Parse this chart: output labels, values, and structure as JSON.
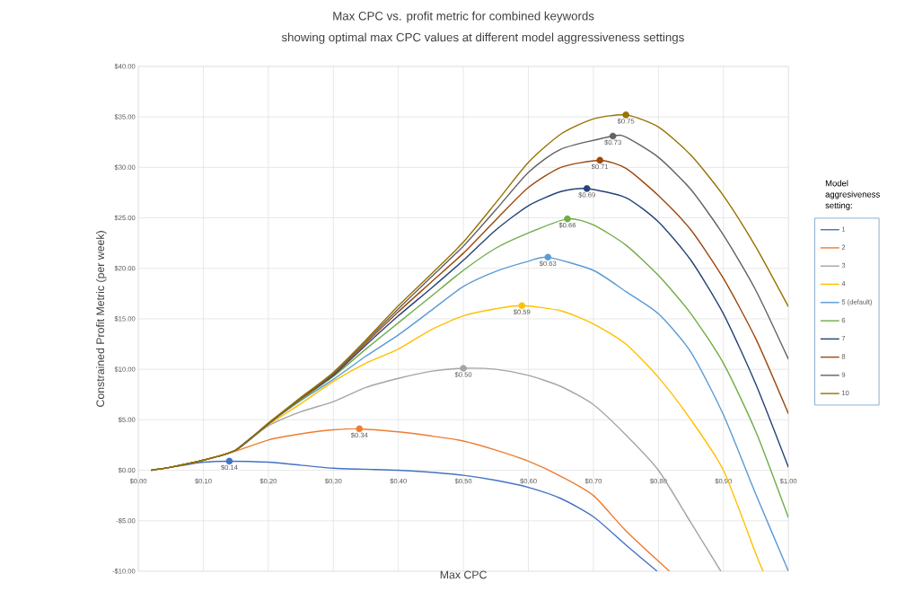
{
  "chart_data": {
    "type": "line",
    "title": "Max CPC vs. profit metric for combined keywords",
    "subtitle": "showing optimal max CPC values at different model aggressiveness settings",
    "xlabel": "Max CPC",
    "ylabel": "Constrained Profit Metric (per week)",
    "legend_title": "Model aggresiveness setting:",
    "legend": "right",
    "grid": true,
    "xlim": [
      0,
      1
    ],
    "ylim": [
      -10,
      40
    ],
    "xticks": [
      {
        "value": 0,
        "label": "$0.00"
      },
      {
        "value": 0.1,
        "label": "$0.10"
      },
      {
        "value": 0.2,
        "label": "$0.20"
      },
      {
        "value": 0.3,
        "label": "$0.30"
      },
      {
        "value": 0.4,
        "label": "$0.40"
      },
      {
        "value": 0.5,
        "label": "$0.50"
      },
      {
        "value": 0.6,
        "label": "$0.60"
      },
      {
        "value": 0.7,
        "label": "$0.70"
      },
      {
        "value": 0.8,
        "label": "$0.80"
      },
      {
        "value": 0.9,
        "label": "$0.90"
      },
      {
        "value": 1,
        "label": "$1.00"
      }
    ],
    "yticks": [
      {
        "value": -10,
        "label": "-$10.00"
      },
      {
        "value": -5,
        "label": "-$5.00"
      },
      {
        "value": 0,
        "label": "$0.00"
      },
      {
        "value": 5,
        "label": "$5.00"
      },
      {
        "value": 10,
        "label": "$10.00"
      },
      {
        "value": 15,
        "label": "$15.00"
      },
      {
        "value": 20,
        "label": "$20.00"
      },
      {
        "value": 25,
        "label": "$25.00"
      },
      {
        "value": 30,
        "label": "$30.00"
      },
      {
        "value": 35,
        "label": "$35.00"
      },
      {
        "value": 40,
        "label": "$40.00"
      }
    ],
    "series": [
      {
        "name": "1",
        "color": "#4472c4",
        "x": [
          0.02,
          0.05,
          0.1,
          0.14,
          0.2,
          0.25,
          0.3,
          0.35,
          0.4,
          0.45,
          0.5,
          0.55,
          0.6,
          0.65,
          0.7,
          0.75,
          0.798
        ],
        "values": [
          0,
          0.3,
          0.8,
          0.9,
          0.8,
          0.5,
          0.2,
          0.1,
          0,
          -0.2,
          -0.5,
          -1.0,
          -1.7,
          -2.8,
          -4.6,
          -7.4,
          -10
        ]
      },
      {
        "name": "2",
        "color": "#ed7d31",
        "x": [
          0.1,
          0.15,
          0.2,
          0.25,
          0.3,
          0.34,
          0.4,
          0.45,
          0.5,
          0.55,
          0.6,
          0.65,
          0.7,
          0.75,
          0.817
        ],
        "values": [
          1.0,
          1.9,
          3.0,
          3.6,
          4.0,
          4.1,
          3.8,
          3.4,
          2.9,
          2.0,
          0.9,
          -0.6,
          -2.5,
          -6.0,
          -10
        ]
      },
      {
        "name": "3",
        "color": "#a5a5a5",
        "x": [
          0.15,
          0.2,
          0.25,
          0.3,
          0.35,
          0.4,
          0.45,
          0.5,
          0.55,
          0.6,
          0.65,
          0.7,
          0.75,
          0.8,
          0.85,
          0.896
        ],
        "values": [
          2.0,
          4.4,
          5.8,
          6.8,
          8.2,
          9.1,
          9.8,
          10.1,
          10.0,
          9.4,
          8.3,
          6.5,
          3.5,
          0,
          -5.2,
          -10
        ]
      },
      {
        "name": "4",
        "color": "#ffc000",
        "x": [
          0.02,
          0.05,
          0.1,
          0.15,
          0.2,
          0.25,
          0.3,
          0.35,
          0.4,
          0.45,
          0.5,
          0.55,
          0.59,
          0.65,
          0.7,
          0.75,
          0.8,
          0.85,
          0.9,
          0.95,
          0.961
        ],
        "values": [
          0,
          0.3,
          1.0,
          2.0,
          4.5,
          6.6,
          8.8,
          10.6,
          12.0,
          13.9,
          15.3,
          16.0,
          16.3,
          15.8,
          14.5,
          12.5,
          9.2,
          5.0,
          0,
          -8.3,
          -10
        ]
      },
      {
        "name": "5 (default)",
        "color": "#5b9bd5",
        "x": [
          0.02,
          0.05,
          0.1,
          0.15,
          0.2,
          0.25,
          0.3,
          0.35,
          0.4,
          0.45,
          0.5,
          0.55,
          0.6,
          0.63,
          0.7,
          0.75,
          0.8,
          0.85,
          0.9,
          0.95,
          1.0
        ],
        "values": [
          0,
          0.3,
          1.0,
          2.0,
          4.6,
          6.9,
          9.0,
          11.3,
          13.4,
          15.8,
          18.2,
          19.7,
          20.7,
          21.1,
          19.8,
          17.7,
          15.5,
          11.7,
          5.5,
          -2.4,
          -10
        ]
      },
      {
        "name": "6",
        "color": "#70ad47",
        "x": [
          0.02,
          0.05,
          0.1,
          0.15,
          0.2,
          0.25,
          0.3,
          0.35,
          0.4,
          0.45,
          0.5,
          0.55,
          0.6,
          0.66,
          0.7,
          0.75,
          0.8,
          0.85,
          0.9,
          0.95,
          1.0
        ],
        "values": [
          0,
          0.3,
          1.0,
          2.0,
          4.6,
          7.0,
          9.3,
          12.0,
          14.6,
          17.2,
          19.8,
          22.0,
          23.5,
          24.9,
          24.3,
          22.3,
          19.3,
          15.5,
          10.6,
          3.8,
          -4.7
        ]
      },
      {
        "name": "7",
        "color": "#264478",
        "x": [
          0.15,
          0.2,
          0.25,
          0.3,
          0.35,
          0.4,
          0.45,
          0.5,
          0.55,
          0.6,
          0.65,
          0.69,
          0.75,
          0.8,
          0.85,
          0.9,
          0.95,
          1.0
        ],
        "values": [
          2.0,
          4.6,
          7.1,
          9.4,
          12.4,
          15.3,
          18.0,
          20.8,
          23.8,
          26.2,
          27.6,
          27.9,
          27.0,
          24.6,
          20.8,
          15.5,
          8.5,
          0.3
        ]
      },
      {
        "name": "8",
        "color": "#9e480e",
        "x": [
          0.02,
          0.05,
          0.1,
          0.15,
          0.2,
          0.25,
          0.3,
          0.35,
          0.4,
          0.45,
          0.5,
          0.55,
          0.6,
          0.65,
          0.71,
          0.75,
          0.8,
          0.85,
          0.9,
          0.95,
          1.0
        ],
        "values": [
          0,
          0.3,
          1.0,
          2.0,
          4.6,
          7.1,
          9.5,
          12.6,
          15.7,
          18.6,
          21.5,
          24.8,
          28.0,
          30.0,
          30.7,
          29.9,
          27.2,
          23.8,
          19.0,
          13.0,
          5.6
        ]
      },
      {
        "name": "9",
        "color": "#636363",
        "x": [
          0.02,
          0.05,
          0.1,
          0.15,
          0.2,
          0.25,
          0.3,
          0.35,
          0.4,
          0.45,
          0.5,
          0.55,
          0.6,
          0.65,
          0.73,
          0.75,
          0.8,
          0.85,
          0.9,
          0.95,
          1.0
        ],
        "values": [
          0,
          0.3,
          1.0,
          2.0,
          4.6,
          7.2,
          9.6,
          12.8,
          16.0,
          19.1,
          22.2,
          25.8,
          29.5,
          31.8,
          33.1,
          33.0,
          31.0,
          27.8,
          23.3,
          17.8,
          11.0
        ]
      },
      {
        "name": "10",
        "color": "#997300",
        "x": [
          0.02,
          0.05,
          0.1,
          0.15,
          0.2,
          0.25,
          0.3,
          0.35,
          0.4,
          0.45,
          0.5,
          0.55,
          0.6,
          0.65,
          0.7,
          0.75,
          0.8,
          0.85,
          0.9,
          0.95,
          1.0
        ],
        "values": [
          0,
          0.3,
          1.0,
          2.0,
          4.7,
          7.2,
          9.7,
          12.9,
          16.3,
          19.4,
          22.6,
          26.5,
          30.5,
          33.3,
          34.8,
          35.2,
          34.0,
          31.2,
          27.2,
          22.1,
          16.2
        ]
      },
      {
        "type": "scatter",
        "marker": "circle",
        "x": [
          0.14,
          0.34,
          0.5,
          0.59,
          0.63,
          0.66,
          0.69,
          0.71,
          0.73,
          0.75
        ],
        "values": [
          0.9,
          4.1,
          10.1,
          16.3,
          21.1,
          24.9,
          27.9,
          30.7,
          33.1,
          35.2
        ],
        "colors": [
          "#4472c4",
          "#ed7d31",
          "#a5a5a5",
          "#ffc000",
          "#5b9bd5",
          "#70ad47",
          "#264478",
          "#9e480e",
          "#636363",
          "#997300"
        ]
      }
    ],
    "annotations": [
      {
        "text": "$0.14",
        "x": 0.14,
        "y": 0.9
      },
      {
        "text": "$0.34",
        "x": 0.34,
        "y": 4.1
      },
      {
        "text": "$0.50",
        "x": 0.5,
        "y": 10.1
      },
      {
        "text": "$0.59",
        "x": 0.59,
        "y": 16.3
      },
      {
        "text": "$0.63",
        "x": 0.63,
        "y": 21.1
      },
      {
        "text": "$0.66",
        "x": 0.66,
        "y": 24.9
      },
      {
        "text": "$0.69",
        "x": 0.69,
        "y": 27.9
      },
      {
        "text": "$0.71",
        "x": 0.71,
        "y": 30.7
      },
      {
        "text": "$0.73",
        "x": 0.73,
        "y": 33.1
      },
      {
        "text": "$0.75",
        "x": 0.75,
        "y": 35.2
      }
    ]
  }
}
